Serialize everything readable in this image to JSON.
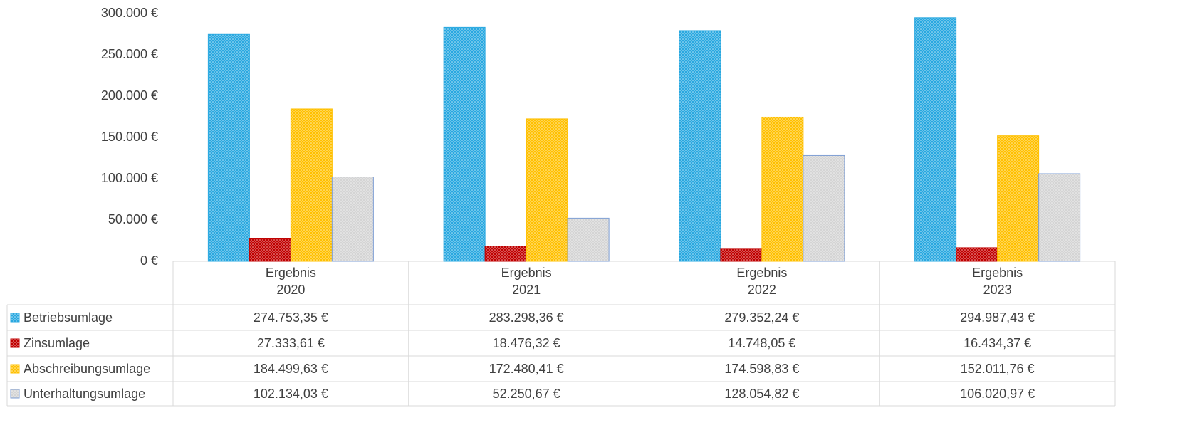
{
  "chart_data": {
    "type": "bar",
    "categories": [
      "Ergebnis\n2020",
      "Ergebnis\n2021",
      "Ergebnis\n2022",
      "Ergebnis\n2023"
    ],
    "series": [
      {
        "name": "Betriebsumlage",
        "color": "#29a8e0",
        "values": [
          274753.35,
          283298.36,
          279352.24,
          294987.43
        ],
        "value_labels": [
          "274.753,35 €",
          "283.298,36 €",
          "279.352,24 €",
          "294.987,43 €"
        ]
      },
      {
        "name": "Zinsumlage",
        "color": "#c00000",
        "values": [
          27333.61,
          18476.32,
          14748.05,
          16434.37
        ],
        "value_labels": [
          "27.333,61 €",
          "18.476,32 €",
          "14.748,05 €",
          "16.434,37 €"
        ]
      },
      {
        "name": "Abschreibungsumlage",
        "color": "#ffc000",
        "values": [
          184499.63,
          172480.41,
          174598.83,
          152011.76
        ],
        "value_labels": [
          "184.499,63 €",
          "172.480,41 €",
          "174.598,83 €",
          "152.011,76 €"
        ]
      },
      {
        "name": "Unterhaltungsumlage",
        "color": "#7f9fd4",
        "values": [
          102134.03,
          52250.67,
          128054.82,
          106020.97
        ],
        "value_labels": [
          "102.134,03 €",
          "52.250,67 €",
          "128.054,82 €",
          "106.020,97 €"
        ]
      }
    ],
    "ylim": [
      0,
      300000
    ],
    "yticks": [
      {
        "value": 0,
        "label": "0 €"
      },
      {
        "value": 50000,
        "label": "50.000 €"
      },
      {
        "value": 100000,
        "label": "100.000 €"
      },
      {
        "value": 150000,
        "label": "150.000 €"
      },
      {
        "value": 200000,
        "label": "200.000 €"
      },
      {
        "value": 250000,
        "label": "250.000 €"
      },
      {
        "value": 300000,
        "label": "300.000 €"
      }
    ],
    "grid": false
  }
}
